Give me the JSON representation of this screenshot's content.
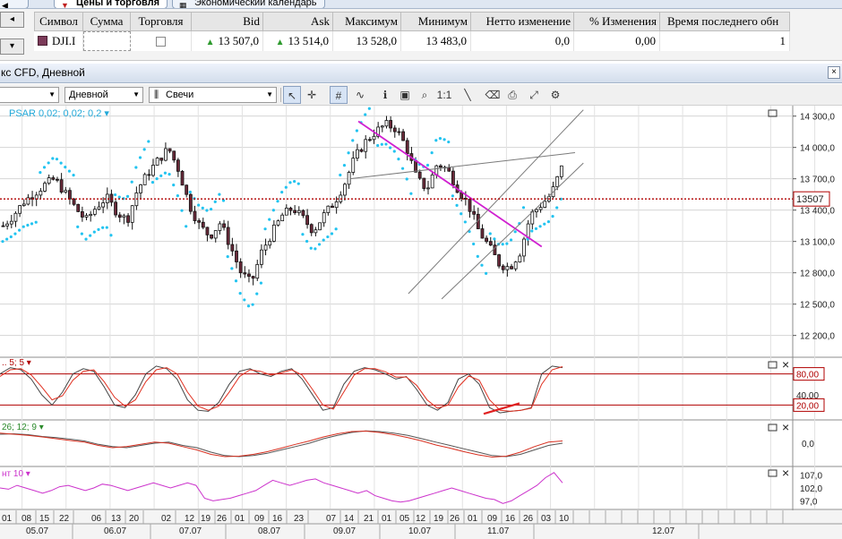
{
  "tabs": [
    {
      "label": "Цены и торговля",
      "icon": "flag-icon"
    },
    {
      "label": "Экономический календарь",
      "icon": "calendar-icon"
    }
  ],
  "quotes": {
    "side_buttons": [
      "◂",
      "▾"
    ],
    "columns": [
      "Символ",
      "Сумма",
      "Торговля",
      "Bid",
      "Ask",
      "Максимум",
      "Минимум",
      "Нетто изменение",
      "% Изменения",
      "Время последнего обн"
    ],
    "row": {
      "symbol": "DJI.I",
      "amount": "",
      "bid": "13 507,0",
      "ask": "13 514,0",
      "high": "13 528,0",
      "low": "13 483,0",
      "net_change": "0,0",
      "pct_change": "0,00",
      "last_update": "1"
    }
  },
  "chart_window": {
    "title": "кс CFD, Дневной",
    "close_glyph": "×"
  },
  "toolbar": {
    "period": "Дневной",
    "chart_type": "Свечи"
  },
  "chart_data": [
    {
      "type": "candlestick",
      "symbol": "DJI.I",
      "indicator_label": "PSAR 0,02; 0,02; 0,2",
      "y_ticks": [
        14300,
        14000,
        13700,
        13400,
        13100,
        12800,
        12500,
        12200
      ],
      "y_tick_labels": [
        "14 300,0",
        "14 000,0",
        "13 700,0",
        "13 400,0",
        "13 100,0",
        "12 800,0",
        "12 500,0",
        "12 200,0"
      ],
      "ylim": [
        12000,
        14400
      ],
      "last_price": 13507,
      "last_price_label": "13507",
      "grid": true,
      "x_day_labels": [
        "01",
        "08",
        "15",
        "22",
        "06",
        "13",
        "20",
        "02",
        "12",
        "19",
        "26",
        "01",
        "09",
        "16",
        "23",
        "07",
        "14",
        "21",
        "01",
        "05",
        "12",
        "19",
        "26",
        "01",
        "09",
        "16",
        "26",
        "03",
        "10"
      ],
      "x_month_labels": [
        "05.07",
        "06.07",
        "07.07",
        "08.07",
        "09.07",
        "10.07",
        "11.07",
        "12.07"
      ],
      "price_path": [
        13250,
        13350,
        13480,
        13560,
        13640,
        13700,
        13560,
        13420,
        13300,
        13430,
        13520,
        13380,
        13300,
        13600,
        13750,
        13880,
        13990,
        13780,
        13450,
        13250,
        13150,
        13280,
        13050,
        12800,
        12700,
        13000,
        13180,
        13350,
        13420,
        13320,
        13200,
        13350,
        13470,
        13650,
        13900,
        14050,
        14150,
        14220,
        14180,
        14000,
        13700,
        13600,
        13850,
        13780,
        13600,
        13450,
        13200,
        13050,
        12880,
        12850,
        13000,
        13350,
        13450,
        13550,
        13800
      ],
      "trendlines": [
        {
          "color": "#d020d0",
          "from": [
            14250,
            43
          ],
          "to": [
            13050,
            65
          ]
        },
        {
          "color": "#7a7a7a",
          "from": [
            12600,
            49
          ],
          "to": [
            14360,
            70
          ]
        },
        {
          "color": "#7a7a7a",
          "from": [
            13700,
            42
          ],
          "to": [
            13950,
            69
          ]
        },
        {
          "color": "#7a7a7a",
          "from": [
            12550,
            53
          ],
          "to": [
            13850,
            70
          ]
        }
      ]
    },
    {
      "type": "line",
      "indicator_label": "5; 5",
      "levels": [
        80,
        20
      ],
      "level_labels": [
        "80,00",
        "40,00",
        "20,00"
      ],
      "ylim": [
        0,
        100
      ],
      "series": [
        {
          "color": "#444444",
          "values": [
            80,
            92,
            88,
            70,
            40,
            20,
            45,
            80,
            90,
            85,
            55,
            20,
            15,
            40,
            80,
            95,
            90,
            70,
            30,
            10,
            8,
            25,
            60,
            85,
            90,
            80,
            75,
            85,
            90,
            70,
            40,
            10,
            15,
            60,
            85,
            92,
            88,
            80,
            70,
            75,
            50,
            20,
            10,
            25,
            70,
            80,
            60,
            15,
            5,
            8,
            10,
            15,
            80,
            95,
            92
          ]
        },
        {
          "color": "#e03020",
          "values": [
            75,
            88,
            90,
            78,
            55,
            30,
            38,
            68,
            85,
            88,
            65,
            35,
            18,
            30,
            65,
            88,
            92,
            80,
            45,
            18,
            10,
            18,
            45,
            75,
            88,
            85,
            78,
            82,
            88,
            78,
            50,
            20,
            12,
            45,
            78,
            90,
            90,
            84,
            74,
            74,
            58,
            30,
            14,
            20,
            55,
            76,
            68,
            30,
            10,
            8,
            10,
            14,
            60,
            88,
            94
          ]
        }
      ],
      "annotation": {
        "color": "#e02020",
        "from": [
          10,
          45
        ],
        "to": [
          20,
          53
        ]
      }
    },
    {
      "type": "line",
      "indicator_label": "26; 12; 9",
      "zero_label": "0,0",
      "ylim": [
        -100,
        100
      ],
      "series": [
        {
          "color": "#555555",
          "values": [
            40,
            42,
            38,
            30,
            25,
            18,
            10,
            -5,
            -15,
            -20,
            -10,
            0,
            5,
            -10,
            -20,
            -40,
            -55,
            -60,
            -55,
            -45,
            -30,
            -15,
            0,
            20,
            35,
            48,
            55,
            52,
            45,
            35,
            20,
            5,
            -10,
            -25,
            -40,
            -55,
            -60,
            -50,
            -30,
            -10,
            0
          ]
        },
        {
          "color": "#d83020",
          "values": [
            45,
            40,
            35,
            28,
            20,
            12,
            5,
            -10,
            -20,
            -15,
            -5,
            5,
            0,
            -15,
            -30,
            -50,
            -60,
            -58,
            -50,
            -38,
            -22,
            -5,
            10,
            28,
            42,
            52,
            54,
            48,
            38,
            25,
            10,
            -8,
            -22,
            -38,
            -52,
            -62,
            -58,
            -40,
            -15,
            5,
            10
          ]
        }
      ]
    },
    {
      "type": "line",
      "indicator_label": "нт 10",
      "y_tick_labels": [
        "107,0",
        "102,0",
        "97,0"
      ],
      "ylim": [
        94,
        110
      ],
      "series": [
        {
          "color": "#cc33cc",
          "values": [
            102,
            101.5,
            103,
            102,
            101,
            100,
            101,
            102.5,
            103,
            102,
            101,
            102,
            103.5,
            103,
            102,
            101,
            102,
            103,
            104,
            103,
            102,
            103,
            104,
            103,
            98,
            97,
            97.5,
            98,
            99,
            100,
            101,
            103,
            105,
            104,
            103,
            104,
            105,
            105.5,
            104,
            103,
            102,
            101,
            100,
            101,
            99,
            98,
            97,
            96.5,
            97,
            98,
            99,
            100,
            101,
            102,
            101,
            100,
            99,
            98,
            97.5,
            96,
            97,
            99,
            101,
            103,
            106,
            108,
            104
          ]
        }
      ]
    }
  ]
}
